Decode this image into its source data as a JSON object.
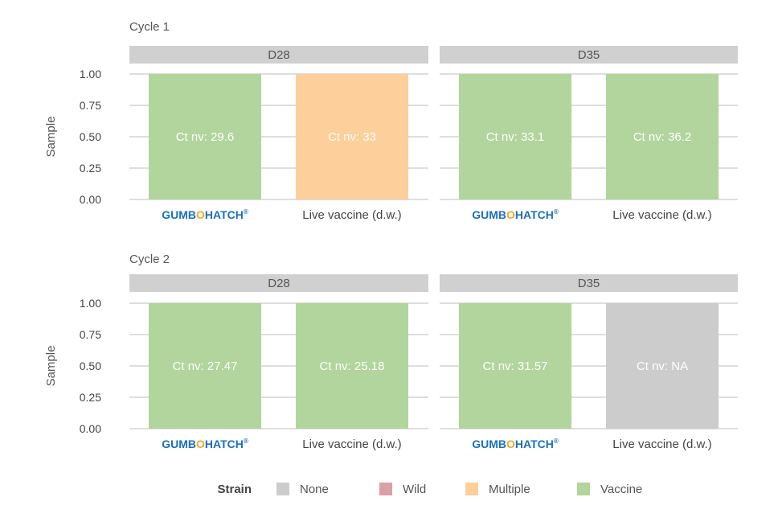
{
  "chart_data": [
    {
      "type": "bar",
      "title": "Cycle 1",
      "ylabel": "Sample",
      "ylim": [
        0,
        1
      ],
      "yticks": [
        "1.00",
        "0.75",
        "0.50",
        "0.25",
        "0.00"
      ],
      "ytick_values": [
        1,
        0.75,
        0.5,
        0.25,
        0
      ],
      "grid": true,
      "facets": [
        {
          "label": "D28",
          "bars": [
            {
              "category": "GUMBOHATCH",
              "category_is_logo": true,
              "value": 1.0,
              "strain": "Vaccine",
              "label": "Ct nv: 29.6"
            },
            {
              "category": "Live vaccine (d.w.)",
              "category_is_logo": false,
              "value": 1.0,
              "strain": "Multiple",
              "label": "Ct nv: 33"
            }
          ]
        },
        {
          "label": "D35",
          "bars": [
            {
              "category": "GUMBOHATCH",
              "category_is_logo": true,
              "value": 1.0,
              "strain": "Vaccine",
              "label": "Ct nv: 33.1"
            },
            {
              "category": "Live vaccine (d.w.)",
              "category_is_logo": false,
              "value": 1.0,
              "strain": "Vaccine",
              "label": "Ct nv: 36.2"
            }
          ]
        }
      ]
    },
    {
      "type": "bar",
      "title": "Cycle 2",
      "ylabel": "Sample",
      "ylim": [
        0,
        1
      ],
      "yticks": [
        "1.00",
        "0.75",
        "0.50",
        "0.25",
        "0.00"
      ],
      "ytick_values": [
        1,
        0.75,
        0.5,
        0.25,
        0
      ],
      "grid": true,
      "facets": [
        {
          "label": "D28",
          "bars": [
            {
              "category": "GUMBOHATCH",
              "category_is_logo": true,
              "value": 1.0,
              "strain": "Vaccine",
              "label": "Ct nv: 27.47"
            },
            {
              "category": "Live vaccine (d.w.)",
              "category_is_logo": false,
              "value": 1.0,
              "strain": "Vaccine",
              "label": "Ct nv: 25.18"
            }
          ]
        },
        {
          "label": "D35",
          "bars": [
            {
              "category": "GUMBOHATCH",
              "category_is_logo": true,
              "value": 1.0,
              "strain": "Vaccine",
              "label": "Ct nv: 31.57"
            },
            {
              "category": "Live vaccine (d.w.)",
              "category_is_logo": false,
              "value": 1.0,
              "strain": "None",
              "label": "Ct nv: NA"
            }
          ]
        }
      ]
    }
  ],
  "legend": {
    "title": "Strain",
    "placement": "bottom",
    "items": [
      {
        "label": "None",
        "color": "#cccccc"
      },
      {
        "label": "Wild",
        "color": "#dba0a6"
      },
      {
        "label": "Multiple",
        "color": "#fccf9b"
      },
      {
        "label": "Vaccine",
        "color": "#b1d59c"
      }
    ]
  },
  "colors": {
    "strip": "#d0d0d0",
    "logo": "#1a6fc2",
    "logo_accent": "#f5a623"
  }
}
